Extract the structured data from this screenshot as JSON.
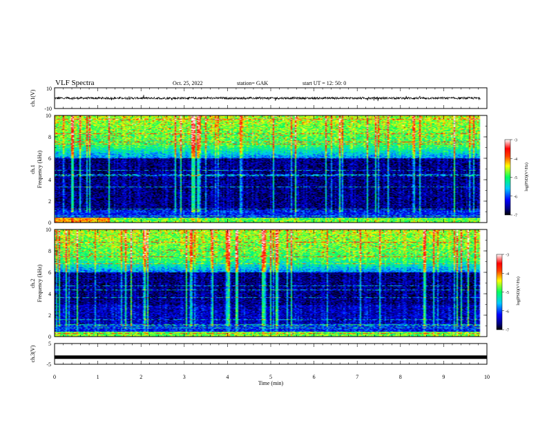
{
  "header": {
    "title": "VLF Spectra",
    "date": "Oct. 25, 2022",
    "station": "station= GAK",
    "start": "start  UT =   12: 50: 0"
  },
  "chart_data": [
    {
      "type": "line",
      "ylabel": "ch.1(V)",
      "ylim": [
        -10,
        10
      ],
      "yticks": [
        "10",
        "-10"
      ],
      "xlim": [
        0,
        10
      ],
      "series": [
        {
          "baseline": 0,
          "noise_amplitude": 2,
          "x_end": 9.85
        }
      ]
    },
    {
      "type": "heatmap",
      "ylabel_line1": "ch.1",
      "ylabel_line2": "Frequency (kHz)",
      "ylim": [
        0,
        10
      ],
      "yticks": [
        "0",
        "2",
        "4",
        "6",
        "8",
        "10"
      ],
      "xlim": [
        0,
        10
      ],
      "colorbar": {
        "label": "log(PSD)(V²/Hz)",
        "ticks": [
          "-3",
          "-4",
          "-5",
          "-6",
          "-7"
        ],
        "range": [
          -7,
          -3
        ]
      }
    },
    {
      "type": "heatmap",
      "ylabel_line1": "ch.2",
      "ylabel_line2": "Frequency (kHz)",
      "ylim": [
        0,
        10
      ],
      "yticks": [
        "0",
        "2",
        "4",
        "6",
        "8",
        "10"
      ],
      "xlim": [
        0,
        10
      ],
      "colorbar": {
        "label": "log(PSD)(V²/Hz)",
        "ticks": [
          "-3",
          "-4",
          "-5",
          "-6",
          "-7"
        ],
        "range": [
          -7,
          -3
        ]
      }
    },
    {
      "type": "line",
      "ylabel": "ch.3(V)",
      "ylim": [
        -5,
        5
      ],
      "yticks": [
        "5",
        "-5"
      ],
      "xlim": [
        0,
        10
      ],
      "series": [
        {
          "baseline": -1.6,
          "x_end": 10
        }
      ]
    }
  ],
  "xaxis": {
    "label": "Time  (min)",
    "ticks": [
      "0",
      "1",
      "2",
      "3",
      "4",
      "5",
      "6",
      "7",
      "8",
      "9",
      "10"
    ]
  }
}
